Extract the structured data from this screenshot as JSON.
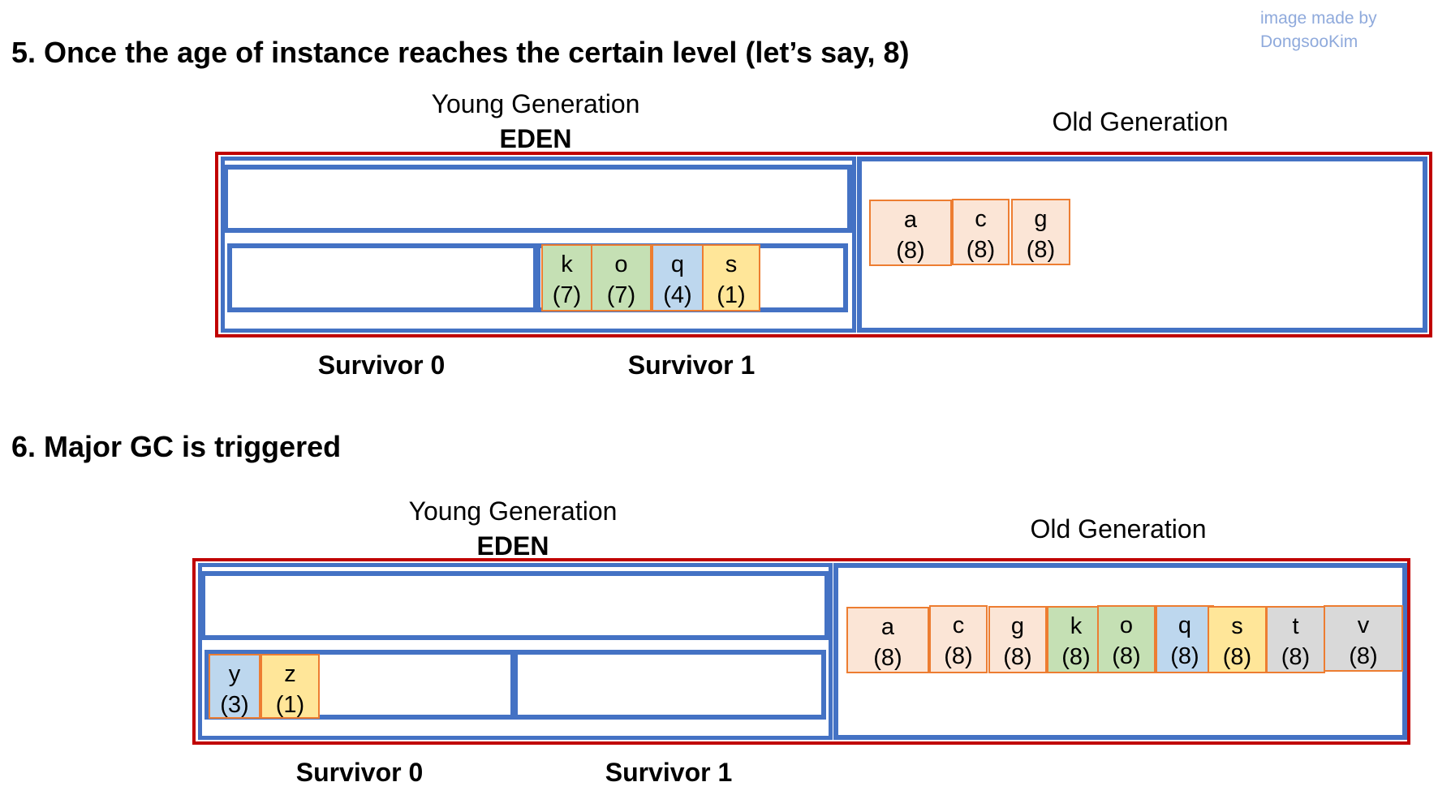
{
  "credit": {
    "line1": "image made by",
    "line2": "DongsooKim"
  },
  "sections": [
    {
      "title": "5. Once the age of instance reaches the certain level (let’s say, 8)",
      "young_label": "Young Generation",
      "eden_label": "EDEN",
      "old_label": "Old Generation",
      "survivor0_label": "Survivor 0",
      "survivor1_label": "Survivor 1",
      "survivor0_objects": [],
      "survivor1_objects": [
        {
          "name": "k",
          "age": "(7)",
          "color": "#c5e0b4"
        },
        {
          "name": "o",
          "age": "(7)",
          "color": "#c5e0b4"
        },
        {
          "name": "q",
          "age": "(4)",
          "color": "#bdd7ee"
        },
        {
          "name": "s",
          "age": "(1)",
          "color": "#ffe699"
        }
      ],
      "old_objects": [
        {
          "name": "a",
          "age": "(8)",
          "color": "#fbe5d6"
        },
        {
          "name": "c",
          "age": "(8)",
          "color": "#fbe5d6"
        },
        {
          "name": "g",
          "age": "(8)",
          "color": "#fbe5d6"
        }
      ]
    },
    {
      "title": "6. Major GC is triggered",
      "young_label": "Young Generation",
      "eden_label": "EDEN",
      "old_label": "Old Generation",
      "survivor0_label": "Survivor 0",
      "survivor1_label": "Survivor 1",
      "survivor0_objects": [
        {
          "name": "y",
          "age": "(3)",
          "color": "#bdd7ee"
        },
        {
          "name": "z",
          "age": "(1)",
          "color": "#ffe699"
        }
      ],
      "survivor1_objects": [],
      "old_objects": [
        {
          "name": "a",
          "age": "(8)",
          "color": "#fbe5d6"
        },
        {
          "name": "c",
          "age": "(8)",
          "color": "#fbe5d6"
        },
        {
          "name": "g",
          "age": "(8)",
          "color": "#fbe5d6"
        },
        {
          "name": "k",
          "age": "(8)",
          "color": "#c5e0b4"
        },
        {
          "name": "o",
          "age": "(8)",
          "color": "#c5e0b4"
        },
        {
          "name": "q",
          "age": "(8)",
          "color": "#bdd7ee"
        },
        {
          "name": "s",
          "age": "(8)",
          "color": "#ffe699"
        },
        {
          "name": "t",
          "age": "(8)",
          "color": "#d9d9d9"
        },
        {
          "name": "v",
          "age": "(8)",
          "color": "#d9d9d9"
        }
      ]
    }
  ]
}
